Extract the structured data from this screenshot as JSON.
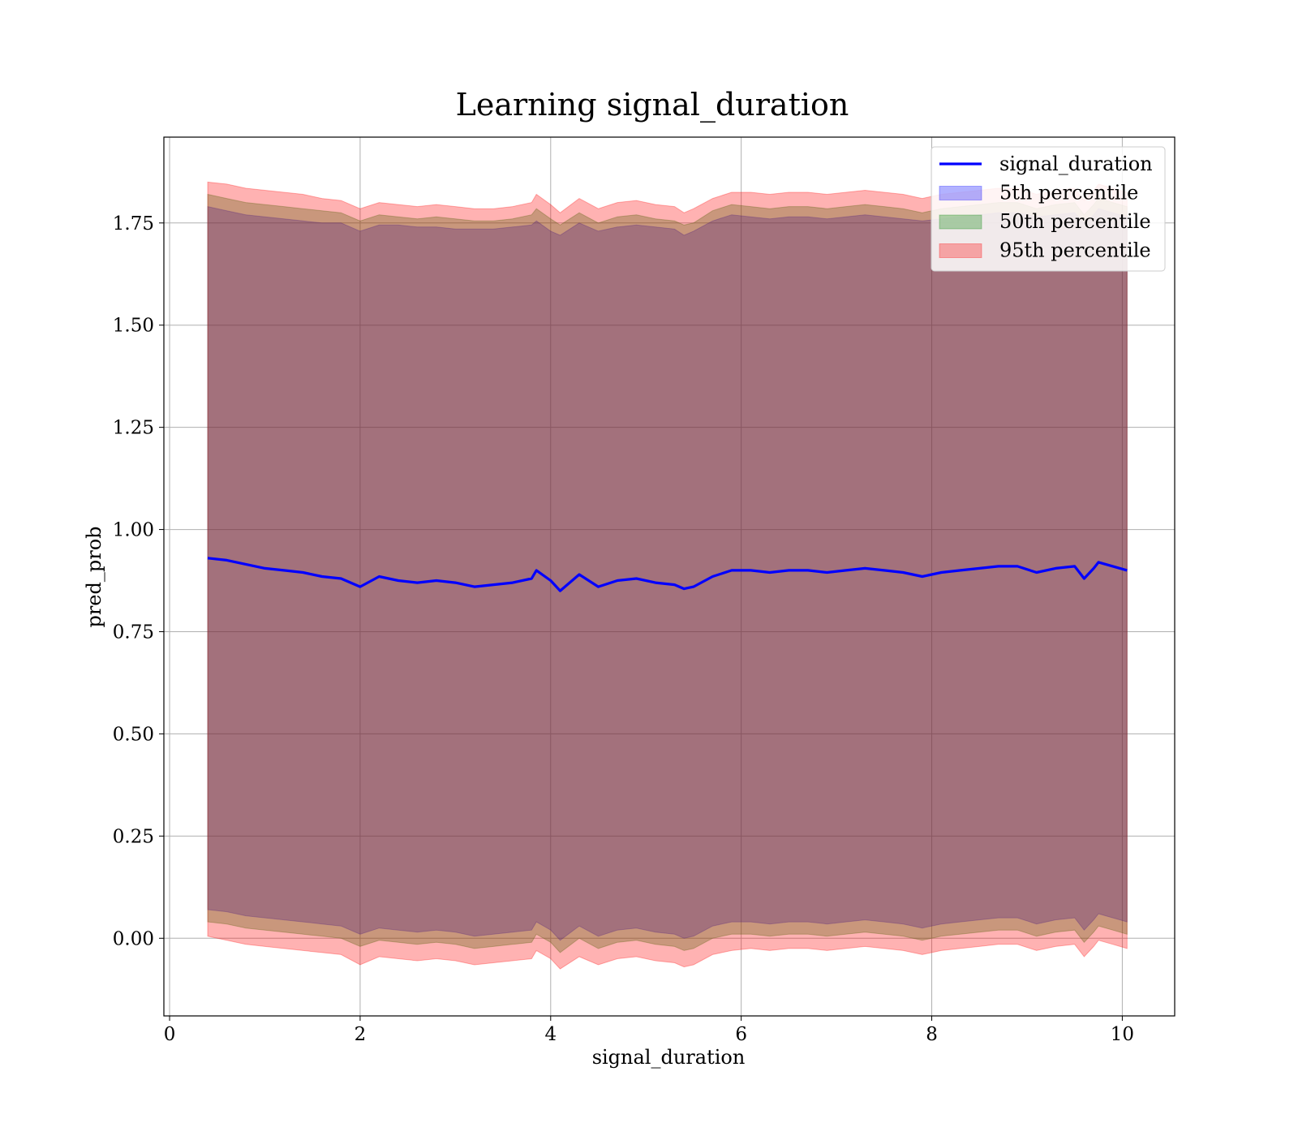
{
  "chart_data": {
    "type": "area",
    "title": "Learning signal_duration",
    "xlabel": "signal_duration",
    "ylabel": "pred_prob",
    "xlim": [
      -0.06,
      10.55
    ],
    "ylim": [
      -0.19,
      1.96
    ],
    "xticks": [
      0,
      2,
      4,
      6,
      8,
      10
    ],
    "xtick_labels": [
      "0",
      "2",
      "4",
      "6",
      "8",
      "10"
    ],
    "yticks": [
      0.0,
      0.25,
      0.5,
      0.75,
      1.0,
      1.25,
      1.5,
      1.75
    ],
    "ytick_labels": [
      "0.00",
      "0.25",
      "0.50",
      "0.75",
      "1.00",
      "1.25",
      "1.50",
      "1.75"
    ],
    "grid": true,
    "legend_position": "top-right",
    "x": [
      0.4,
      0.6,
      0.8,
      1.0,
      1.2,
      1.4,
      1.6,
      1.8,
      2.0,
      2.2,
      2.4,
      2.6,
      2.8,
      3.0,
      3.2,
      3.4,
      3.6,
      3.8,
      3.85,
      4.0,
      4.1,
      4.3,
      4.5,
      4.7,
      4.9,
      5.1,
      5.3,
      5.4,
      5.5,
      5.7,
      5.9,
      6.1,
      6.3,
      6.5,
      6.7,
      6.9,
      7.1,
      7.3,
      7.5,
      7.7,
      7.9,
      8.1,
      8.3,
      8.5,
      8.7,
      8.9,
      9.1,
      9.3,
      9.5,
      9.6,
      9.7,
      9.75,
      9.9,
      10.05
    ],
    "series": [
      {
        "name": "signal_duration",
        "kind": "line",
        "color": "#0000ff",
        "values": [
          0.93,
          0.925,
          0.915,
          0.905,
          0.9,
          0.895,
          0.885,
          0.88,
          0.86,
          0.885,
          0.875,
          0.87,
          0.875,
          0.87,
          0.86,
          0.865,
          0.87,
          0.88,
          0.9,
          0.875,
          0.85,
          0.89,
          0.86,
          0.875,
          0.88,
          0.87,
          0.865,
          0.855,
          0.86,
          0.885,
          0.9,
          0.9,
          0.895,
          0.9,
          0.9,
          0.895,
          0.9,
          0.905,
          0.9,
          0.895,
          0.885,
          0.895,
          0.9,
          0.905,
          0.91,
          0.91,
          0.895,
          0.905,
          0.91,
          0.88,
          0.905,
          0.92,
          0.91,
          0.9
        ]
      },
      {
        "name": "5th percentile",
        "kind": "band",
        "color": "#0000ff",
        "upper": [
          1.79,
          1.78,
          1.77,
          1.765,
          1.76,
          1.755,
          1.75,
          1.75,
          1.73,
          1.745,
          1.745,
          1.74,
          1.74,
          1.735,
          1.735,
          1.735,
          1.74,
          1.745,
          1.755,
          1.73,
          1.72,
          1.75,
          1.73,
          1.74,
          1.745,
          1.74,
          1.735,
          1.72,
          1.73,
          1.755,
          1.77,
          1.765,
          1.76,
          1.765,
          1.765,
          1.76,
          1.765,
          1.77,
          1.765,
          1.76,
          1.755,
          1.76,
          1.765,
          1.77,
          1.775,
          1.775,
          1.765,
          1.77,
          1.775,
          1.75,
          1.77,
          1.785,
          1.775,
          1.765
        ],
        "lower": [
          0.07,
          0.065,
          0.055,
          0.05,
          0.045,
          0.04,
          0.035,
          0.03,
          0.01,
          0.025,
          0.02,
          0.015,
          0.02,
          0.015,
          0.005,
          0.01,
          0.015,
          0.02,
          0.04,
          0.02,
          -0.005,
          0.03,
          0.005,
          0.02,
          0.025,
          0.015,
          0.01,
          0.0,
          0.005,
          0.03,
          0.04,
          0.04,
          0.035,
          0.04,
          0.04,
          0.035,
          0.04,
          0.045,
          0.04,
          0.035,
          0.025,
          0.035,
          0.04,
          0.045,
          0.05,
          0.05,
          0.035,
          0.045,
          0.05,
          0.02,
          0.045,
          0.06,
          0.05,
          0.04
        ]
      },
      {
        "name": "50th percentile",
        "kind": "band",
        "color": "#008000",
        "upper": [
          1.82,
          1.81,
          1.8,
          1.795,
          1.79,
          1.785,
          1.78,
          1.775,
          1.755,
          1.77,
          1.765,
          1.76,
          1.765,
          1.76,
          1.755,
          1.755,
          1.76,
          1.77,
          1.785,
          1.76,
          1.745,
          1.775,
          1.75,
          1.765,
          1.77,
          1.76,
          1.755,
          1.745,
          1.75,
          1.78,
          1.795,
          1.79,
          1.785,
          1.79,
          1.79,
          1.785,
          1.79,
          1.795,
          1.79,
          1.785,
          1.775,
          1.785,
          1.79,
          1.795,
          1.8,
          1.8,
          1.785,
          1.795,
          1.8,
          1.77,
          1.795,
          1.81,
          1.8,
          1.79
        ],
        "lower": [
          0.04,
          0.035,
          0.025,
          0.02,
          0.015,
          0.01,
          0.005,
          0.0,
          -0.02,
          -0.005,
          -0.01,
          -0.015,
          -0.01,
          -0.015,
          -0.025,
          -0.02,
          -0.015,
          -0.01,
          0.01,
          -0.01,
          -0.035,
          0.0,
          -0.025,
          -0.01,
          -0.005,
          -0.015,
          -0.02,
          -0.03,
          -0.025,
          0.0,
          0.01,
          0.01,
          0.005,
          0.01,
          0.01,
          0.005,
          0.01,
          0.015,
          0.01,
          0.005,
          -0.005,
          0.005,
          0.01,
          0.015,
          0.02,
          0.02,
          0.005,
          0.015,
          0.02,
          -0.01,
          0.015,
          0.03,
          0.02,
          0.01
        ]
      },
      {
        "name": "95th percentile",
        "kind": "band",
        "color": "#ff0000",
        "upper": [
          1.85,
          1.845,
          1.835,
          1.83,
          1.825,
          1.82,
          1.81,
          1.805,
          1.785,
          1.8,
          1.795,
          1.79,
          1.795,
          1.79,
          1.785,
          1.785,
          1.79,
          1.8,
          1.82,
          1.795,
          1.775,
          1.81,
          1.785,
          1.8,
          1.805,
          1.795,
          1.79,
          1.775,
          1.785,
          1.81,
          1.825,
          1.825,
          1.82,
          1.825,
          1.825,
          1.82,
          1.825,
          1.83,
          1.825,
          1.82,
          1.81,
          1.82,
          1.825,
          1.83,
          1.835,
          1.835,
          1.82,
          1.83,
          1.835,
          1.805,
          1.83,
          1.845,
          1.835,
          1.825
        ],
        "lower": [
          0.005,
          -0.005,
          -0.015,
          -0.02,
          -0.025,
          -0.03,
          -0.035,
          -0.04,
          -0.065,
          -0.045,
          -0.05,
          -0.055,
          -0.05,
          -0.055,
          -0.065,
          -0.06,
          -0.055,
          -0.05,
          -0.03,
          -0.05,
          -0.075,
          -0.045,
          -0.065,
          -0.05,
          -0.045,
          -0.055,
          -0.06,
          -0.07,
          -0.065,
          -0.04,
          -0.03,
          -0.025,
          -0.03,
          -0.025,
          -0.025,
          -0.03,
          -0.025,
          -0.02,
          -0.025,
          -0.03,
          -0.04,
          -0.03,
          -0.025,
          -0.02,
          -0.015,
          -0.015,
          -0.03,
          -0.02,
          -0.015,
          -0.045,
          -0.02,
          -0.005,
          -0.015,
          -0.025
        ]
      }
    ]
  }
}
